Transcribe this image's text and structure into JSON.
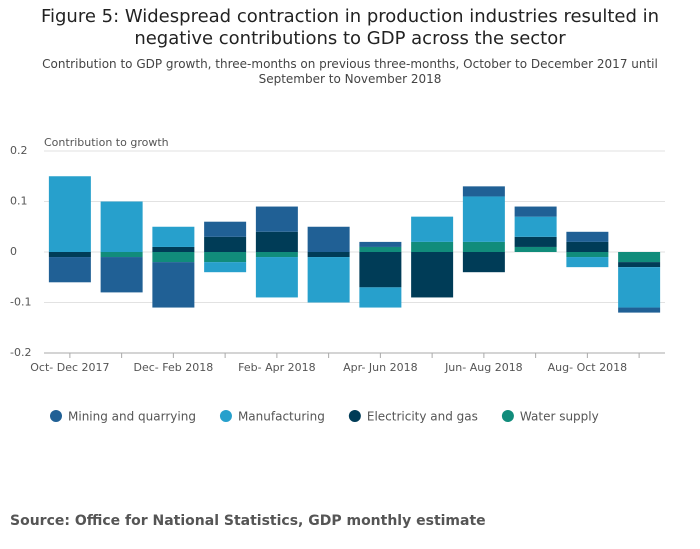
{
  "chart_data": {
    "type": "bar",
    "stacked": true,
    "title": "Figure 5: Widespread contraction in production industries resulted in negative contributions to GDP across the sector",
    "subtitle": "Contribution to GDP growth, three-months on previous three-months, October to December 2017 until September to November 2018",
    "y_label": "Contribution to growth",
    "source": "Source: Office for National Statistics, GDP monthly estimate",
    "categories": [
      "Oct- Dec 2017",
      null,
      "Dec- Feb 2018",
      null,
      "Feb- Apr 2018",
      null,
      "Apr- Jun 2018",
      null,
      "Jun- Aug 2018",
      null,
      "Aug- Oct 2018",
      null
    ],
    "series": [
      {
        "name": "Mining and quarrying",
        "color": "#206095",
        "values": [
          -0.05,
          -0.07,
          -0.09,
          0.03,
          0.05,
          0.05,
          0.01,
          0,
          0.02,
          0.02,
          0.02,
          -0.01
        ]
      },
      {
        "name": "Manufacturing",
        "color": "#27a0cc",
        "values": [
          0.15,
          0.1,
          0.04,
          -0.02,
          -0.08,
          -0.09,
          -0.04,
          0.05,
          0.09,
          0.04,
          -0.02,
          -0.08
        ]
      },
      {
        "name": "Electricity and gas",
        "color": "#003c57",
        "values": [
          -0.01,
          0,
          0.01,
          0.03,
          0.04,
          -0.01,
          -0.07,
          -0.09,
          -0.04,
          0.02,
          0.02,
          -0.01
        ]
      },
      {
        "name": "Water supply",
        "color": "#118c7b",
        "values": [
          0,
          -0.01,
          -0.02,
          -0.02,
          -0.01,
          0,
          0.01,
          0.02,
          0.02,
          0.01,
          -0.01,
          -0.02
        ]
      }
    ],
    "ylim": [
      -0.2,
      0.2
    ],
    "yticks": [
      0.2,
      0.1,
      0,
      -0.1,
      -0.2
    ],
    "grid": true
  }
}
